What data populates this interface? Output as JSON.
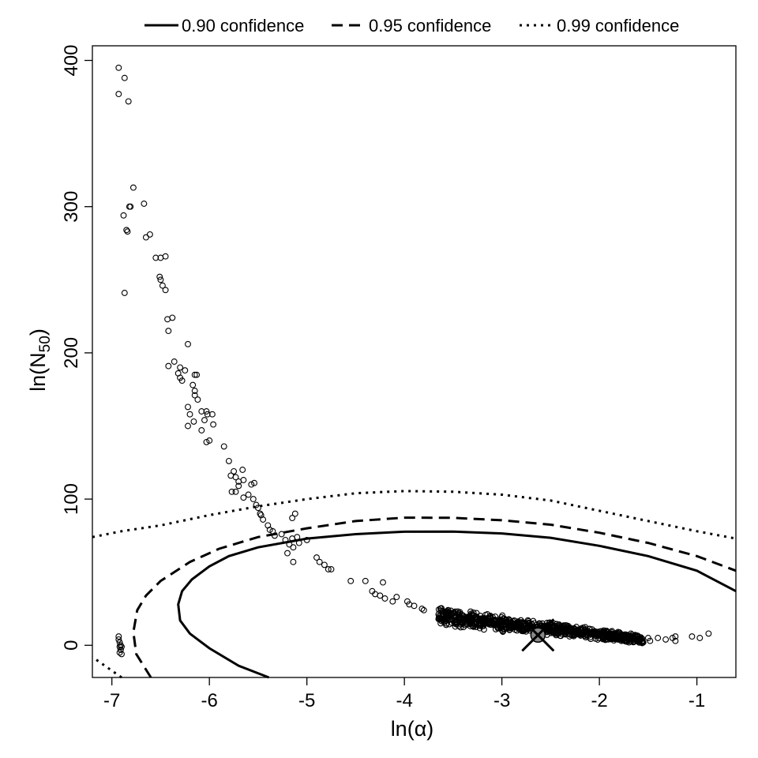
{
  "chart_data": {
    "type": "scatter",
    "title": "",
    "xlabel": "ln(α)",
    "ylabel": {
      "prefix": "ln(N",
      "subscript": "50",
      "suffix": ")"
    },
    "xlim": [
      -7.2,
      -0.6
    ],
    "ylim": [
      -22,
      410
    ],
    "x_ticks": [
      -7,
      -6,
      -5,
      -4,
      -3,
      -2,
      -1
    ],
    "x_tick_labels": [
      "-7",
      "-6",
      "-5",
      "-4",
      "-3",
      "-2",
      "-1"
    ],
    "y_ticks": [
      0,
      100,
      200,
      300,
      400
    ],
    "y_tick_labels": [
      "0",
      "100",
      "200",
      "300",
      "400"
    ],
    "grid": false,
    "legend_position": "top",
    "legend": [
      {
        "label": "0.90 confidence",
        "style": "solid"
      },
      {
        "label": "0.95 confidence",
        "style": "dashed"
      },
      {
        "label": "0.99 confidence",
        "style": "dotted"
      }
    ],
    "contours": [
      {
        "name": "0.90 confidence",
        "style": "solid",
        "points": [
          [
            -5.39,
            -22
          ],
          [
            -5.7,
            -14
          ],
          [
            -6.0,
            -2
          ],
          [
            -6.2,
            8
          ],
          [
            -6.3,
            17
          ],
          [
            -6.32,
            28
          ],
          [
            -6.28,
            37
          ],
          [
            -6.18,
            45
          ],
          [
            -6.0,
            54
          ],
          [
            -5.8,
            61
          ],
          [
            -5.5,
            67
          ],
          [
            -5.0,
            73
          ],
          [
            -4.5,
            76
          ],
          [
            -4.0,
            77.7
          ],
          [
            -3.5,
            77.8
          ],
          [
            -3.0,
            76.5
          ],
          [
            -2.5,
            73.5
          ],
          [
            -2.0,
            68
          ],
          [
            -1.5,
            61
          ],
          [
            -1.0,
            51
          ],
          [
            -0.6,
            37
          ]
        ]
      },
      {
        "name": "0.95 confidence",
        "style": "dashed",
        "points": [
          [
            -6.6,
            -22
          ],
          [
            -6.75,
            -6
          ],
          [
            -6.78,
            9
          ],
          [
            -6.74,
            24
          ],
          [
            -6.65,
            34
          ],
          [
            -6.5,
            44
          ],
          [
            -6.2,
            57
          ],
          [
            -5.9,
            66
          ],
          [
            -5.5,
            74
          ],
          [
            -5.0,
            80
          ],
          [
            -4.5,
            85
          ],
          [
            -4.0,
            87.3
          ],
          [
            -3.5,
            87.2
          ],
          [
            -3.0,
            85.5
          ],
          [
            -2.5,
            82.5
          ],
          [
            -2.0,
            77
          ],
          [
            -1.5,
            70
          ],
          [
            -1.0,
            61
          ],
          [
            -0.6,
            51
          ]
        ]
      },
      {
        "name": "0.99 confidence",
        "style": "dotted",
        "points": [
          [
            -6.9,
            -22
          ],
          [
            -7.2,
            -8
          ]
        ]
      },
      {
        "name": "0.99 confidence",
        "style": "dotted",
        "points": [
          [
            -7.2,
            74
          ],
          [
            -6.9,
            78
          ],
          [
            -6.5,
            82
          ],
          [
            -6.0,
            89
          ],
          [
            -5.5,
            95
          ],
          [
            -5.0,
            100
          ],
          [
            -4.5,
            104
          ],
          [
            -4.0,
            105.5
          ],
          [
            -3.5,
            105
          ],
          [
            -3.0,
            103
          ],
          [
            -2.5,
            99
          ],
          [
            -2.0,
            92
          ],
          [
            -1.5,
            85
          ],
          [
            -1.0,
            78
          ],
          [
            -0.6,
            73
          ]
        ]
      }
    ],
    "scatter": [
      [
        -6.93,
        395
      ],
      [
        -6.87,
        388
      ],
      [
        -6.93,
        377
      ],
      [
        -6.83,
        372
      ],
      [
        -6.78,
        313
      ],
      [
        -6.67,
        302
      ],
      [
        -6.88,
        294
      ],
      [
        -6.82,
        300
      ],
      [
        -6.81,
        300
      ],
      [
        -6.84,
        283
      ],
      [
        -6.85,
        284
      ],
      [
        -6.61,
        281
      ],
      [
        -6.65,
        279
      ],
      [
        -6.55,
        265
      ],
      [
        -6.5,
        265
      ],
      [
        -6.45,
        266
      ],
      [
        -6.87,
        241
      ],
      [
        -6.51,
        252
      ],
      [
        -6.5,
        250
      ],
      [
        -6.48,
        246
      ],
      [
        -6.45,
        243
      ],
      [
        -6.43,
        223
      ],
      [
        -6.38,
        224
      ],
      [
        -6.42,
        215
      ],
      [
        -6.22,
        206
      ],
      [
        -6.42,
        191
      ],
      [
        -6.36,
        194
      ],
      [
        -6.3,
        190
      ],
      [
        -6.32,
        186
      ],
      [
        -6.25,
        188
      ],
      [
        -6.3,
        183
      ],
      [
        -6.28,
        181
      ],
      [
        -6.15,
        185
      ],
      [
        -6.13,
        185
      ],
      [
        -6.17,
        178
      ],
      [
        -6.15,
        171
      ],
      [
        -6.12,
        168
      ],
      [
        -6.15,
        174
      ],
      [
        -6.08,
        160
      ],
      [
        -6.03,
        160
      ],
      [
        -6.02,
        158
      ],
      [
        -5.97,
        158
      ],
      [
        -6.22,
        163
      ],
      [
        -6.2,
        158
      ],
      [
        -6.16,
        153
      ],
      [
        -6.22,
        150
      ],
      [
        -6.05,
        154
      ],
      [
        -6.08,
        147
      ],
      [
        -5.96,
        151
      ],
      [
        -6.0,
        140
      ],
      [
        -6.03,
        139
      ],
      [
        -5.85,
        136
      ],
      [
        -5.8,
        126
      ],
      [
        -5.75,
        119
      ],
      [
        -5.66,
        120
      ],
      [
        -5.78,
        116
      ],
      [
        -5.73,
        115
      ],
      [
        -5.7,
        112
      ],
      [
        -5.65,
        113
      ],
      [
        -5.7,
        109
      ],
      [
        -5.73,
        105
      ],
      [
        -5.77,
        105
      ],
      [
        -5.65,
        101
      ],
      [
        -5.6,
        103
      ],
      [
        -5.57,
        110
      ],
      [
        -5.54,
        111
      ],
      [
        -5.55,
        100
      ],
      [
        -5.5,
        94
      ],
      [
        -5.47,
        89
      ],
      [
        -5.48,
        90
      ],
      [
        -5.52,
        96
      ],
      [
        -5.45,
        86
      ],
      [
        -5.4,
        82
      ],
      [
        -5.38,
        79
      ],
      [
        -5.35,
        78
      ],
      [
        -5.33,
        75
      ],
      [
        -5.26,
        76
      ],
      [
        -5.22,
        72
      ],
      [
        -5.15,
        73
      ],
      [
        -5.18,
        69
      ],
      [
        -5.14,
        67
      ],
      [
        -5.1,
        74
      ],
      [
        -5.08,
        70
      ],
      [
        -5.2,
        63
      ],
      [
        -5.14,
        57
      ],
      [
        -5.0,
        72
      ],
      [
        -5.15,
        87
      ],
      [
        -5.12,
        90
      ],
      [
        -4.9,
        60
      ],
      [
        -4.87,
        57
      ],
      [
        -4.82,
        55
      ],
      [
        -4.78,
        52
      ],
      [
        -4.75,
        52
      ],
      [
        -4.55,
        44
      ],
      [
        -4.4,
        44
      ],
      [
        -4.22,
        43
      ],
      [
        -4.33,
        37
      ],
      [
        -4.3,
        35
      ],
      [
        -4.25,
        34
      ],
      [
        -4.2,
        32
      ],
      [
        -4.12,
        30
      ],
      [
        -4.08,
        33
      ],
      [
        -3.97,
        30
      ],
      [
        -3.95,
        28
      ],
      [
        -3.9,
        27
      ],
      [
        -3.82,
        25
      ],
      [
        -3.8,
        24
      ],
      [
        -6.93,
        6
      ],
      [
        -6.93,
        4
      ],
      [
        -6.92,
        2
      ],
      [
        -6.91,
        0
      ],
      [
        -6.92,
        -1
      ],
      [
        -6.91,
        -3
      ],
      [
        -6.92,
        -5
      ],
      [
        -6.9,
        -6
      ],
      [
        -6.91,
        -3
      ],
      [
        -6.9,
        -1
      ],
      [
        -1.05,
        6
      ],
      [
        -0.97,
        5
      ],
      [
        -0.88,
        8
      ],
      [
        -1.22,
        6
      ],
      [
        -1.25,
        5
      ],
      [
        -1.22,
        3
      ],
      [
        -1.32,
        4
      ],
      [
        -1.4,
        5
      ],
      [
        -1.48,
        3
      ],
      [
        -1.55,
        2
      ],
      [
        -1.5,
        5
      ],
      [
        -1.62,
        4
      ],
      [
        -1.7,
        4
      ]
    ],
    "cluster": {
      "center": [
        -2.3,
        6
      ],
      "x_range": [
        -3.65,
        -1.55
      ],
      "n": 900
    },
    "estimate": {
      "x": -2.63,
      "y": 7
    }
  }
}
